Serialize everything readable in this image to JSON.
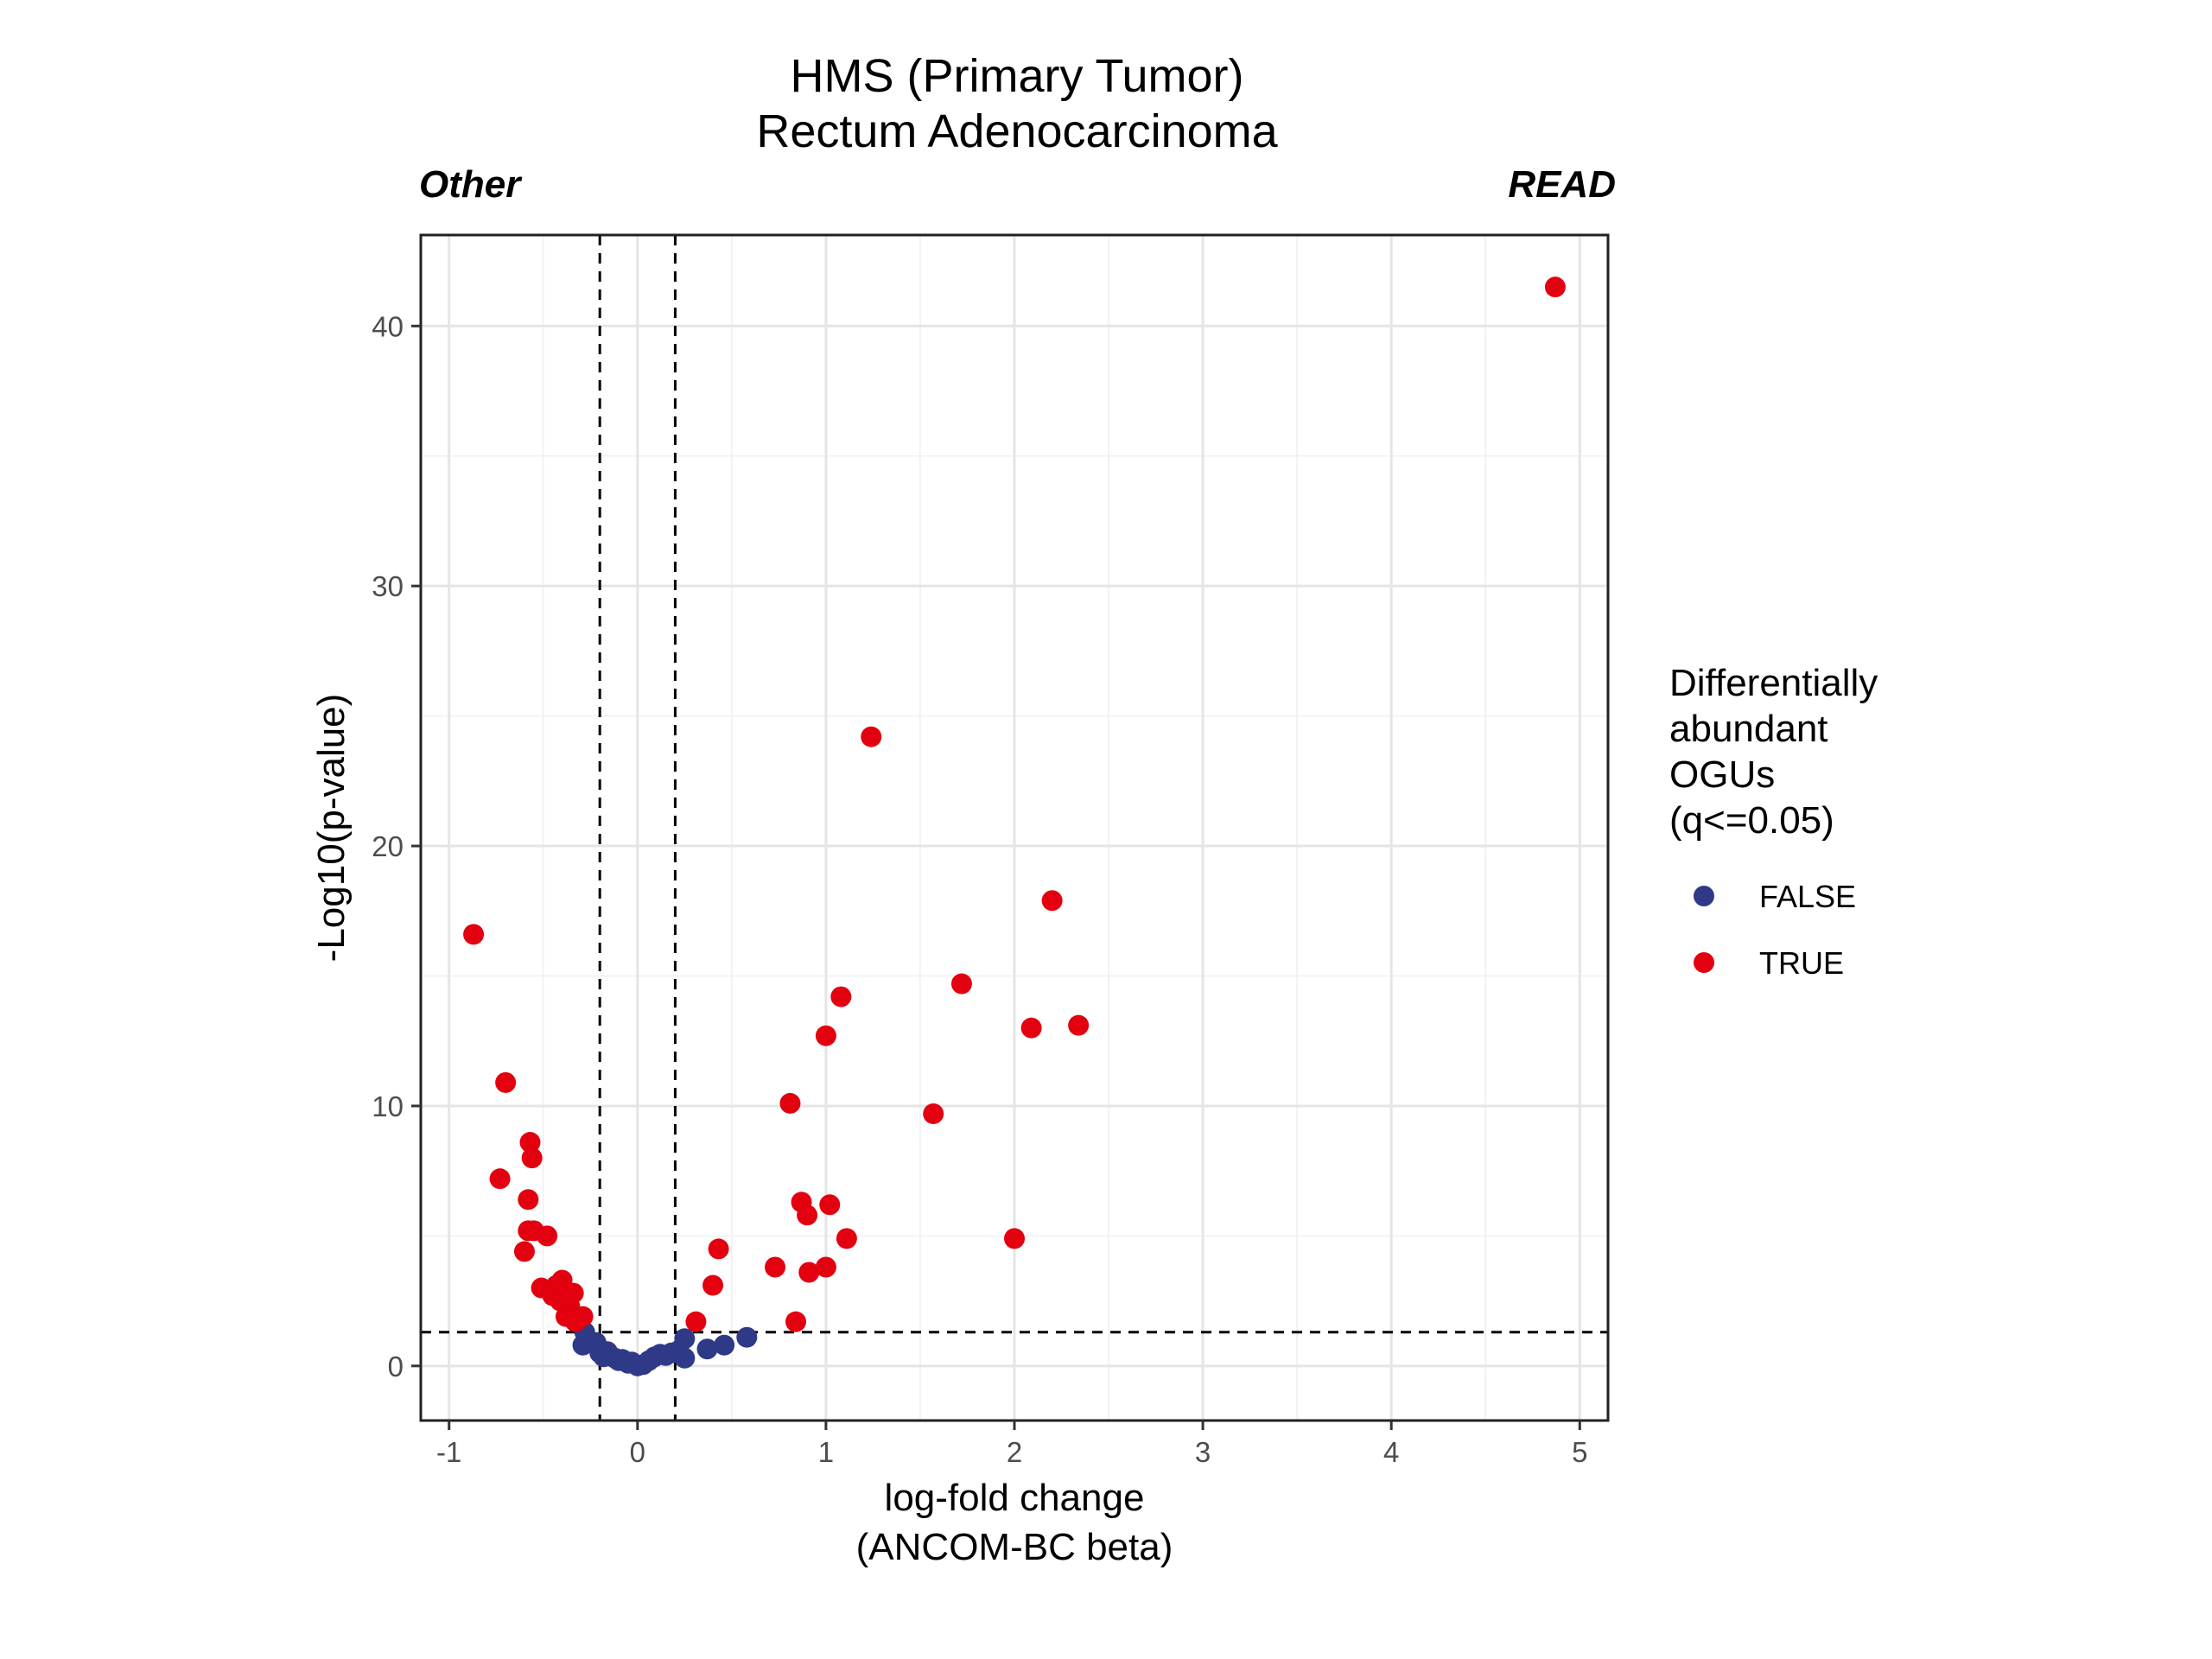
{
  "chart_data": {
    "type": "scatter",
    "title": "HMS (Primary Tumor)",
    "subtitle": "Rectum Adenocarcinoma",
    "left_label": "Other",
    "right_label": "READ",
    "xlabel": "log-fold change",
    "xlabel_sub": "(ANCOM-BC beta)",
    "ylabel": "-Log10(p-value)",
    "xlim": [
      -1.15,
      5.15
    ],
    "ylim": [
      -2.1,
      43.5
    ],
    "x_ticks": [
      -1,
      0,
      1,
      2,
      3,
      4,
      5
    ],
    "x_tick_labels": [
      "-1",
      "0",
      "1",
      "2",
      "3",
      "4",
      "5"
    ],
    "y_ticks": [
      0,
      10,
      20,
      30,
      40
    ],
    "y_tick_labels": [
      "0",
      "10",
      "20",
      "30",
      "40"
    ],
    "grid": true,
    "thresholds": {
      "x": [
        -0.2,
        0.2
      ],
      "y": 1.3
    },
    "legend": {
      "title_lines": [
        "Differentially",
        "abundant",
        "OGUs",
        "(q<=0.05)"
      ],
      "position": "right"
    },
    "series": [
      {
        "name": "FALSE",
        "color": "#2e3a87",
        "points": [
          [
            -0.28,
            1.3
          ],
          [
            -0.29,
            0.8
          ],
          [
            -0.22,
            0.9
          ],
          [
            -0.2,
            0.5
          ],
          [
            -0.18,
            0.35
          ],
          [
            -0.16,
            0.55
          ],
          [
            -0.12,
            0.3
          ],
          [
            -0.1,
            0.2
          ],
          [
            -0.08,
            0.25
          ],
          [
            -0.05,
            0.1
          ],
          [
            -0.03,
            0.15
          ],
          [
            0.0,
            0.0
          ],
          [
            0.03,
            0.05
          ],
          [
            0.06,
            0.2
          ],
          [
            0.09,
            0.35
          ],
          [
            0.12,
            0.45
          ],
          [
            0.15,
            0.4
          ],
          [
            0.18,
            0.5
          ],
          [
            0.22,
            0.6
          ],
          [
            0.25,
            0.3
          ],
          [
            0.25,
            1.05
          ],
          [
            0.37,
            0.65
          ],
          [
            0.46,
            0.8
          ],
          [
            0.58,
            1.1
          ]
        ]
      },
      {
        "name": "TRUE",
        "color": "#e3000f",
        "points": [
          [
            4.87,
            41.5
          ],
          [
            1.24,
            24.2
          ],
          [
            2.2,
            17.9
          ],
          [
            -0.87,
            16.6
          ],
          [
            1.72,
            14.7
          ],
          [
            1.08,
            14.2
          ],
          [
            2.34,
            13.1
          ],
          [
            2.09,
            13.0
          ],
          [
            1.0,
            12.7
          ],
          [
            -0.7,
            10.9
          ],
          [
            0.81,
            10.1
          ],
          [
            1.57,
            9.7
          ],
          [
            -0.57,
            8.6
          ],
          [
            -0.56,
            8.0
          ],
          [
            -0.73,
            7.2
          ],
          [
            -0.58,
            6.4
          ],
          [
            0.87,
            6.3
          ],
          [
            1.02,
            6.2
          ],
          [
            0.9,
            5.8
          ],
          [
            -0.58,
            5.2
          ],
          [
            -0.55,
            5.2
          ],
          [
            -0.48,
            5.0
          ],
          [
            1.11,
            4.9
          ],
          [
            2.0,
            4.9
          ],
          [
            0.43,
            4.5
          ],
          [
            -0.6,
            4.4
          ],
          [
            0.73,
            3.8
          ],
          [
            1.0,
            3.8
          ],
          [
            0.91,
            3.6
          ],
          [
            -0.4,
            3.3
          ],
          [
            -0.43,
            3.1
          ],
          [
            0.4,
            3.1
          ],
          [
            -0.51,
            3.0
          ],
          [
            -0.34,
            2.8
          ],
          [
            -0.45,
            2.7
          ],
          [
            -0.41,
            2.5
          ],
          [
            -0.36,
            2.3
          ],
          [
            -0.29,
            1.9
          ],
          [
            -0.38,
            1.9
          ],
          [
            -0.33,
            1.7
          ],
          [
            0.31,
            1.7
          ],
          [
            0.84,
            1.7
          ]
        ]
      }
    ]
  }
}
